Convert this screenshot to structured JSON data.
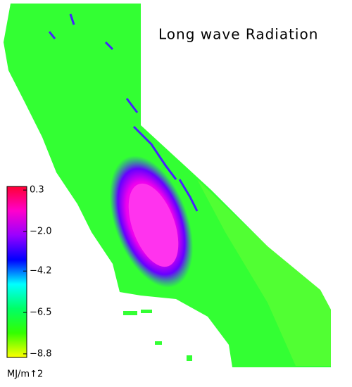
{
  "title": "Long wave Radiation",
  "colorbar": {
    "unit_label": "MJ/m↑2",
    "lim": [
      0.5,
      -9.0
    ],
    "ticks": [
      0.3,
      {
        "value": -2.0,
        "label": "−2.0"
      },
      {
        "value": -4.2,
        "label": "−4.2"
      },
      {
        "value": -6.5,
        "label": "−6.5"
      },
      {
        "value": -8.8,
        "label": "−8.8"
      }
    ],
    "colors": [
      "#ff0033",
      "#ff00cc",
      "#9900ff",
      "#0000ff",
      "#00ffff",
      "#00ff66",
      "#33ff00",
      "#ffff00"
    ]
  }
}
